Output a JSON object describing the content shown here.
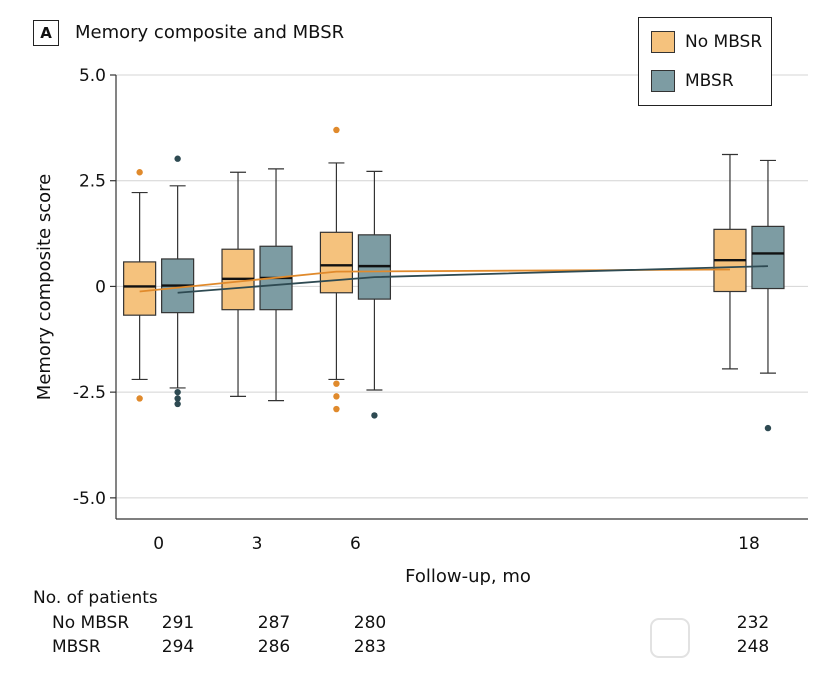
{
  "panel": {
    "badge": "A",
    "title": "Memory composite and MBSR"
  },
  "legend": {
    "items": [
      {
        "label": "No MBSR",
        "color": "#f5c27d"
      },
      {
        "label": "MBSR",
        "color": "#7d9ca3"
      }
    ]
  },
  "chart_data": {
    "type": "boxplot",
    "title": "Memory composite and MBSR",
    "xlabel": "Follow-up, mo",
    "ylabel": "Memory composite score",
    "x_ticks": [
      0,
      3,
      6,
      18
    ],
    "x_tick_labels": [
      "0",
      "3",
      "6",
      "18"
    ],
    "xlim": [
      -1.3,
      19.8
    ],
    "y_ticks": [
      5.0,
      2.5,
      0,
      -2.5,
      -5.0
    ],
    "y_tick_labels": [
      "5.0",
      "2.5",
      "0",
      "-2.5",
      "-5.0"
    ],
    "ylim": [
      -5.5,
      5.0
    ],
    "gridlines": true,
    "series": [
      {
        "name": "No MBSR",
        "color": "#f5c27d",
        "line_color": "#e08a2c",
        "outlier_color": "#e08a2c",
        "boxes": [
          {
            "time": 0,
            "whisker_low": -2.2,
            "q1": -0.68,
            "median": 0.0,
            "q3": 0.58,
            "whisker_high": 2.22,
            "outliers": [
              2.7,
              -2.65
            ]
          },
          {
            "time": 3,
            "whisker_low": -2.6,
            "q1": -0.55,
            "median": 0.18,
            "q3": 0.88,
            "whisker_high": 2.7,
            "outliers": []
          },
          {
            "time": 6,
            "whisker_low": -2.2,
            "q1": -0.15,
            "median": 0.5,
            "q3": 1.28,
            "whisker_high": 2.92,
            "outliers": [
              3.7,
              -2.3,
              -2.6,
              -2.9
            ]
          },
          {
            "time": 18,
            "whisker_low": -1.95,
            "q1": -0.12,
            "median": 0.62,
            "q3": 1.35,
            "whisker_high": 3.12,
            "outliers": []
          }
        ],
        "trend": [
          {
            "time": 0,
            "value": -0.12
          },
          {
            "time": 6,
            "value": 0.35
          },
          {
            "time": 18,
            "value": 0.4
          }
        ]
      },
      {
        "name": "MBSR",
        "color": "#7d9ca3",
        "line_color": "#2e4a52",
        "outlier_color": "#2e4a52",
        "boxes": [
          {
            "time": 0,
            "whisker_low": -2.4,
            "q1": -0.62,
            "median": 0.02,
            "q3": 0.65,
            "whisker_high": 2.38,
            "outliers": [
              3.02,
              -2.5,
              -2.65,
              -2.78
            ]
          },
          {
            "time": 3,
            "whisker_low": -2.7,
            "q1": -0.55,
            "median": 0.2,
            "q3": 0.95,
            "whisker_high": 2.78,
            "outliers": []
          },
          {
            "time": 6,
            "whisker_low": -2.45,
            "q1": -0.3,
            "median": 0.48,
            "q3": 1.22,
            "whisker_high": 2.72,
            "outliers": [
              -3.05
            ]
          },
          {
            "time": 18,
            "whisker_low": -2.05,
            "q1": -0.05,
            "median": 0.78,
            "q3": 1.42,
            "whisker_high": 2.98,
            "outliers": [
              -3.35
            ]
          }
        ],
        "trend": [
          {
            "time": 0,
            "value": -0.15
          },
          {
            "time": 6,
            "value": 0.22
          },
          {
            "time": 18,
            "value": 0.48
          }
        ]
      }
    ]
  },
  "patients": {
    "title": "No. of patients",
    "rows": [
      {
        "label": "No MBSR",
        "counts": [
          "291",
          "287",
          "280",
          "232"
        ]
      },
      {
        "label": "MBSR",
        "counts": [
          "294",
          "286",
          "283",
          "248"
        ]
      }
    ]
  }
}
